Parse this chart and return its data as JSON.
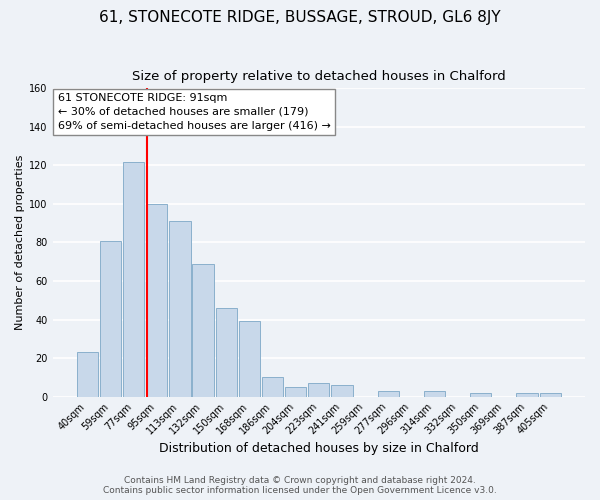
{
  "title": "61, STONECOTE RIDGE, BUSSAGE, STROUD, GL6 8JY",
  "subtitle": "Size of property relative to detached houses in Chalford",
  "xlabel": "Distribution of detached houses by size in Chalford",
  "ylabel": "Number of detached properties",
  "bar_labels": [
    "40sqm",
    "59sqm",
    "77sqm",
    "95sqm",
    "113sqm",
    "132sqm",
    "150sqm",
    "168sqm",
    "186sqm",
    "204sqm",
    "223sqm",
    "241sqm",
    "259sqm",
    "277sqm",
    "296sqm",
    "314sqm",
    "332sqm",
    "350sqm",
    "369sqm",
    "387sqm",
    "405sqm"
  ],
  "bar_values": [
    23,
    81,
    122,
    100,
    91,
    69,
    46,
    39,
    10,
    5,
    7,
    6,
    0,
    3,
    0,
    3,
    0,
    2,
    0,
    2,
    2
  ],
  "bar_color": "#c8d8ea",
  "bar_edge_color": "#8ab0cc",
  "vline_x_index": 2.575,
  "vline_color": "red",
  "annotation_text": "61 STONECOTE RIDGE: 91sqm\n← 30% of detached houses are smaller (179)\n69% of semi-detached houses are larger (416) →",
  "annotation_box_color": "white",
  "annotation_box_edge": "#888888",
  "ylim": [
    0,
    160
  ],
  "yticks": [
    0,
    20,
    40,
    60,
    80,
    100,
    120,
    140,
    160
  ],
  "footer_line1": "Contains HM Land Registry data © Crown copyright and database right 2024.",
  "footer_line2": "Contains public sector information licensed under the Open Government Licence v3.0.",
  "background_color": "#eef2f7",
  "grid_color": "white",
  "title_fontsize": 11,
  "subtitle_fontsize": 9.5,
  "xlabel_fontsize": 9,
  "ylabel_fontsize": 8,
  "tick_fontsize": 7,
  "annotation_fontsize": 8,
  "footer_fontsize": 6.5
}
